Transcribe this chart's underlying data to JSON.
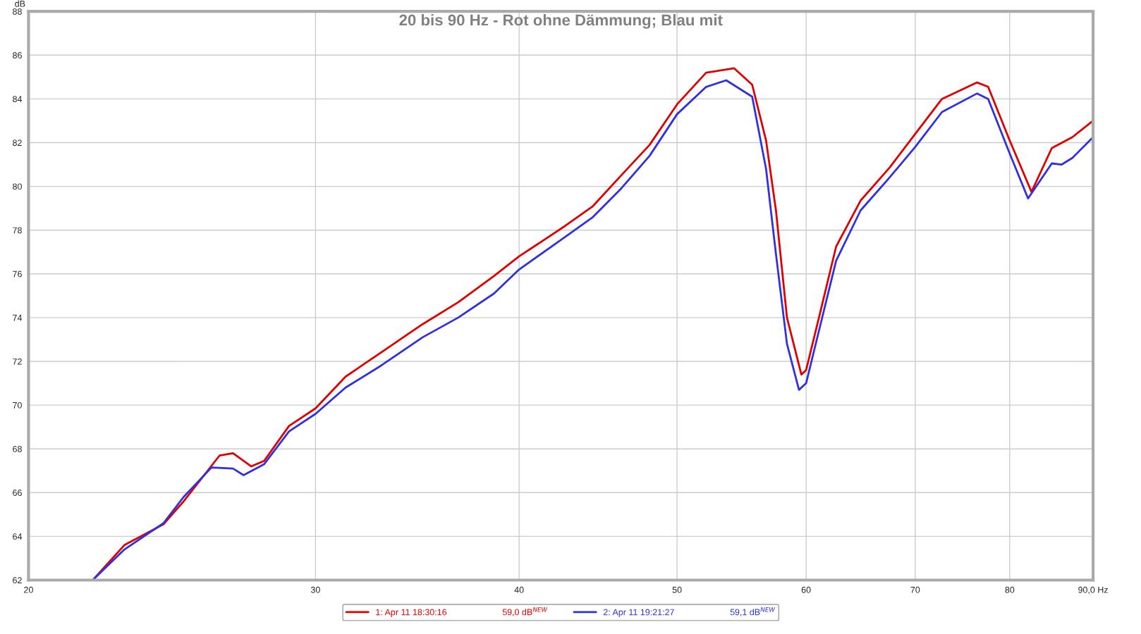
{
  "chart_data": {
    "type": "line",
    "title": "20 bis 90 Hz - Rot ohne Dämmung; Blau mit",
    "ylabel": "dB",
    "log": "x",
    "xlim": [
      20,
      90
    ],
    "xticks": [
      20,
      30,
      40,
      50,
      60,
      70,
      80,
      {
        "value": 90,
        "label": "90,0 Hz"
      }
    ],
    "ylim": [
      62,
      88
    ],
    "yticks": [
      62,
      64,
      66,
      68,
      70,
      72,
      74,
      76,
      78,
      80,
      82,
      84,
      86,
      88
    ],
    "grid": true,
    "legend": "bottom",
    "marker": "none",
    "line_style": "solid",
    "annotations": [
      "59,0 dB$^{NEW}$",
      "59,1 dB$^{NEW}$"
    ],
    "series": [
      {
        "name": "1: Apr 11 18:30:16",
        "color": "#e00000",
        "x": [
          21.9,
          22.9,
          24.2,
          24.9,
          26.2,
          26.7,
          27.4,
          27.9,
          28.9,
          30,
          31.3,
          32.9,
          34.9,
          36.7,
          38.6,
          40,
          42.7,
          44.4,
          46.2,
          48.1,
          50,
          52.1,
          54.2,
          55.6,
          56.7,
          57.5,
          58.4,
          59.6,
          60,
          61.1,
          62.6,
          64.8,
          67.5,
          70,
          72.7,
          76.4,
          77.6,
          80,
          82.5,
          84.9,
          87.4,
          90
        ],
        "values": [
          62.0,
          63.6,
          64.55,
          65.6,
          67.7,
          67.8,
          67.2,
          67.45,
          69.05,
          69.85,
          71.3,
          72.4,
          73.7,
          74.7,
          75.9,
          76.8,
          78.2,
          79.1,
          80.5,
          81.9,
          83.75,
          85.2,
          85.4,
          84.65,
          82.1,
          78.9,
          74.0,
          71.4,
          71.6,
          74.0,
          77.25,
          79.35,
          80.85,
          82.4,
          84.0,
          84.75,
          84.55,
          82.1,
          79.75,
          81.75,
          82.25,
          83.0
        ]
      },
      {
        "name": "2: Apr 11 19:21:27",
        "color": "#3030e0",
        "x": [
          21.9,
          22.9,
          24.2,
          24.9,
          25.9,
          26.7,
          27.1,
          27.9,
          28.9,
          30,
          31.3,
          32.9,
          34.9,
          36.7,
          38.6,
          40,
          42.7,
          44.4,
          46.2,
          48.1,
          50,
          52.1,
          53.6,
          55.6,
          56.7,
          57.5,
          58.4,
          59.4,
          60,
          61.1,
          62.6,
          64.8,
          67.5,
          70,
          72.7,
          76.4,
          77.6,
          80,
          82.1,
          84.9,
          86.1,
          87.4,
          90
        ],
        "values": [
          62.0,
          63.4,
          64.6,
          65.8,
          67.15,
          67.1,
          66.8,
          67.3,
          68.8,
          69.6,
          70.8,
          71.8,
          73.1,
          74.0,
          75.1,
          76.2,
          77.7,
          78.6,
          79.9,
          81.4,
          83.3,
          84.55,
          84.85,
          84.1,
          80.8,
          76.9,
          72.8,
          70.7,
          71.0,
          73.4,
          76.6,
          78.9,
          80.4,
          81.8,
          83.4,
          84.25,
          84.0,
          81.5,
          79.45,
          81.05,
          81.0,
          81.3,
          82.25
        ]
      }
    ]
  }
}
